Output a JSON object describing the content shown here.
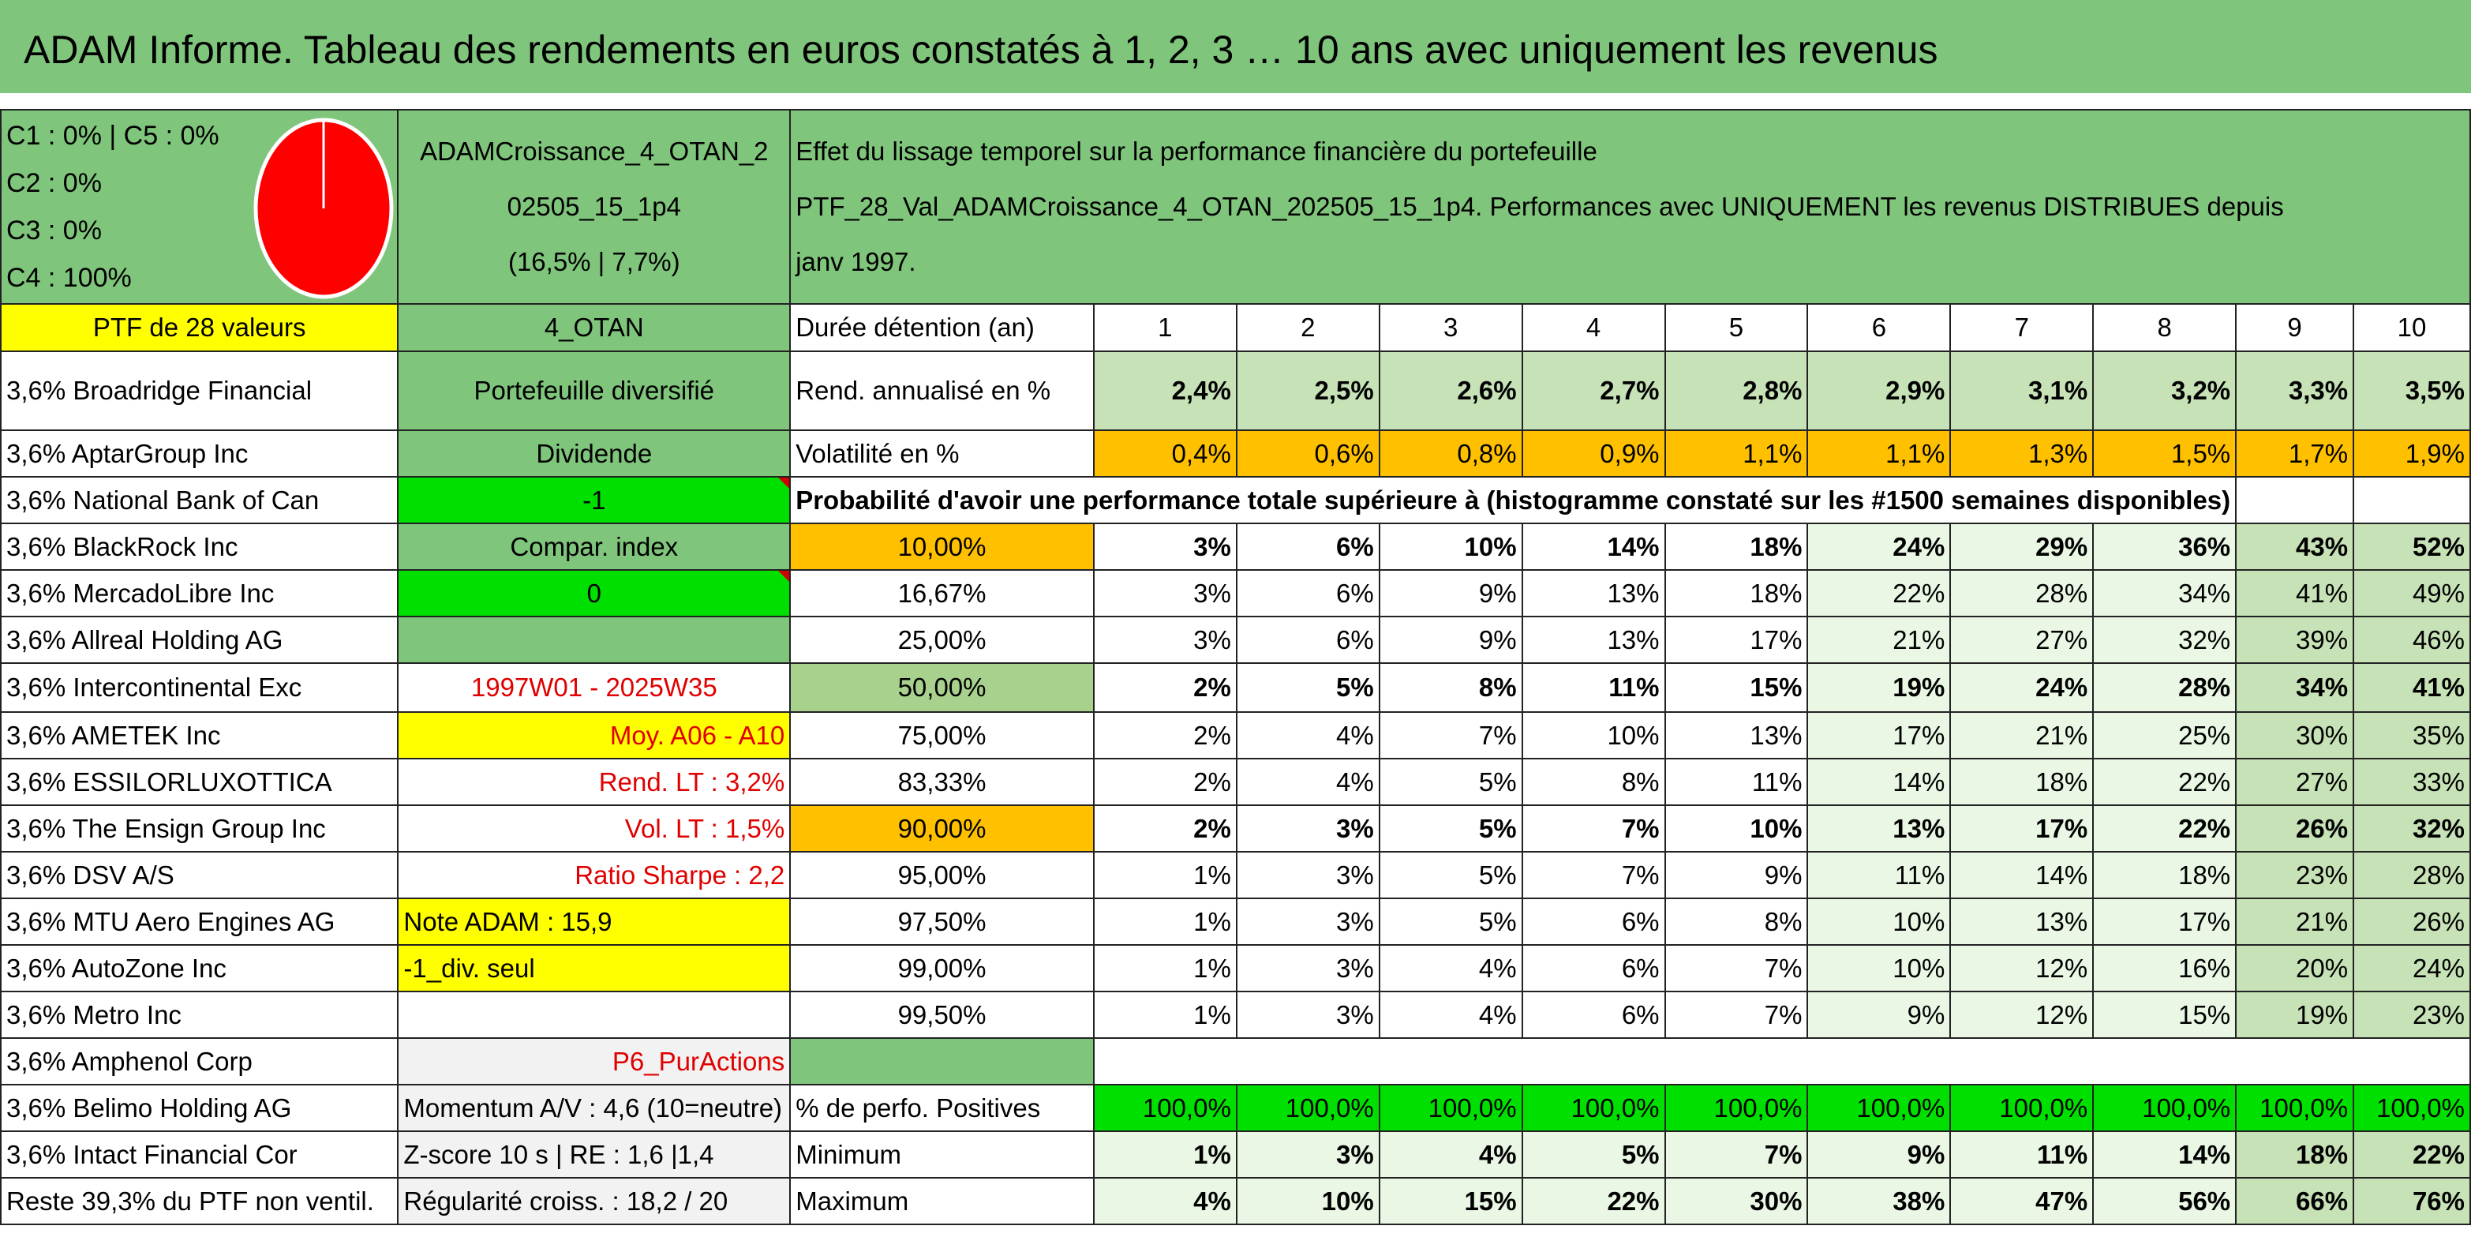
{
  "title": "ADAM Informe. Tableau des rendements en euros constatés à 1, 2, 3 … 10 ans avec uniquement les revenus",
  "composition": [
    "C1 : 0% | C5 : 0%",
    "C2 : 0%",
    "C3 : 0%",
    "C4 : 100%"
  ],
  "pie": {
    "color": "#ff0000",
    "value_percent": 100
  },
  "portfolio": {
    "name_line1": "ADAMCroissance_4_OTAN_2",
    "name_line2": "02505_15_1p4",
    "name_line3": "(16,5% | 7,7%)"
  },
  "effect": {
    "line1": "Effet du lissage temporel sur la performance financière du portefeuille",
    "line2": "PTF_28_Val_ADAMCroissance_4_OTAN_202505_15_1p4. Performances avec UNIQUEMENT les revenus DISTRIBUES depuis",
    "line3": "janv 1997."
  },
  "ptf_label": "PTF de 28 valeurs",
  "holdings": [
    "3,6% Broadridge Financial",
    "3,6% AptarGroup Inc",
    "3,6% National Bank of Can",
    "3,6% BlackRock Inc",
    "3,6% MercadoLibre Inc",
    "3,6% Allreal Holding AG",
    "3,6% Intercontinental Exc",
    "3,6% AMETEK Inc",
    "3,6% ESSILORLUXOTTICA",
    "3,6% The Ensign Group Inc",
    "3,6% DSV A/S",
    "3,6% MTU Aero Engines AG",
    "3,6% AutoZone Inc",
    "3,6% Metro Inc",
    "3,6% Amphenol Corp",
    "3,6% Belimo Holding AG",
    "3,6% Intact Financial Cor",
    "Reste 39,3% du PTF non ventil."
  ],
  "info": {
    "otan": "4_OTAN",
    "diversified": "Portefeuille diversifié",
    "dividende": "Dividende",
    "val_minus1": "-1",
    "compar": "Compar. index",
    "val_0": "0",
    "period": "1997W01 - 2025W35",
    "moy": "Moy. A06 - A10",
    "rend_lt": "Rend. LT : 3,2%",
    "vol_lt": "Vol. LT : 1,5%",
    "sharpe": "Ratio Sharpe : 2,2",
    "note": "Note ADAM : 15,9",
    "div_seul": "-1_div. seul",
    "pur": "P6_PurActions",
    "momentum": "Momentum A/V : 4,6 (10=neutre)",
    "zscore": "Z-score 10 s | RE : 1,6 |1,4",
    "regularite": "Régularité croiss. : 18,2 / 20"
  },
  "table": {
    "duree_label": "Durée détention (an)",
    "years": [
      "1",
      "2",
      "3",
      "4",
      "5",
      "6",
      "7",
      "8",
      "9",
      "10"
    ],
    "rend_label": "Rend. annualisé en %",
    "rend": [
      "2,4%",
      "2,5%",
      "2,6%",
      "2,7%",
      "2,8%",
      "2,9%",
      "3,1%",
      "3,2%",
      "3,3%",
      "3,5%"
    ],
    "vol_label": "Volatilité en %",
    "vol": [
      "0,4%",
      "0,6%",
      "0,8%",
      "0,9%",
      "1,1%",
      "1,1%",
      "1,3%",
      "1,5%",
      "1,7%",
      "1,9%"
    ],
    "prob_label": "Probabilité d'avoir une performance totale supérieure à (histogramme constaté sur les #1500 semaines disponibles)",
    "prob_rows": [
      {
        "p": "10,00%",
        "v": [
          "3%",
          "6%",
          "10%",
          "14%",
          "18%",
          "24%",
          "29%",
          "36%",
          "43%",
          "52%"
        ]
      },
      {
        "p": "16,67%",
        "v": [
          "3%",
          "6%",
          "9%",
          "13%",
          "18%",
          "22%",
          "28%",
          "34%",
          "41%",
          "49%"
        ]
      },
      {
        "p": "25,00%",
        "v": [
          "3%",
          "6%",
          "9%",
          "13%",
          "17%",
          "21%",
          "27%",
          "32%",
          "39%",
          "46%"
        ]
      },
      {
        "p": "50,00%",
        "v": [
          "2%",
          "5%",
          "8%",
          "11%",
          "15%",
          "19%",
          "24%",
          "28%",
          "34%",
          "41%"
        ]
      },
      {
        "p": "75,00%",
        "v": [
          "2%",
          "4%",
          "7%",
          "10%",
          "13%",
          "17%",
          "21%",
          "25%",
          "30%",
          "35%"
        ]
      },
      {
        "p": "83,33%",
        "v": [
          "2%",
          "4%",
          "5%",
          "8%",
          "11%",
          "14%",
          "18%",
          "22%",
          "27%",
          "33%"
        ]
      },
      {
        "p": "90,00%",
        "v": [
          "2%",
          "3%",
          "5%",
          "7%",
          "10%",
          "13%",
          "17%",
          "22%",
          "26%",
          "32%"
        ]
      },
      {
        "p": "95,00%",
        "v": [
          "1%",
          "3%",
          "5%",
          "7%",
          "9%",
          "11%",
          "14%",
          "18%",
          "23%",
          "28%"
        ]
      },
      {
        "p": "97,50%",
        "v": [
          "1%",
          "3%",
          "5%",
          "6%",
          "8%",
          "10%",
          "13%",
          "17%",
          "21%",
          "26%"
        ]
      },
      {
        "p": "99,00%",
        "v": [
          "1%",
          "3%",
          "4%",
          "6%",
          "7%",
          "10%",
          "12%",
          "16%",
          "20%",
          "24%"
        ]
      },
      {
        "p": "99,50%",
        "v": [
          "1%",
          "3%",
          "4%",
          "6%",
          "7%",
          "9%",
          "12%",
          "15%",
          "19%",
          "23%"
        ]
      }
    ],
    "pos_label": "% de perfo. Positives",
    "pos": [
      "100,0%",
      "100,0%",
      "100,0%",
      "100,0%",
      "100,0%",
      "100,0%",
      "100,0%",
      "100,0%",
      "100,0%",
      "100,0%"
    ],
    "min_label": "Minimum",
    "min": [
      "1%",
      "3%",
      "4%",
      "5%",
      "7%",
      "9%",
      "11%",
      "14%",
      "18%",
      "22%"
    ],
    "max_label": "Maximum",
    "max": [
      "4%",
      "10%",
      "15%",
      "22%",
      "30%",
      "38%",
      "47%",
      "56%",
      "66%",
      "76%"
    ]
  }
}
